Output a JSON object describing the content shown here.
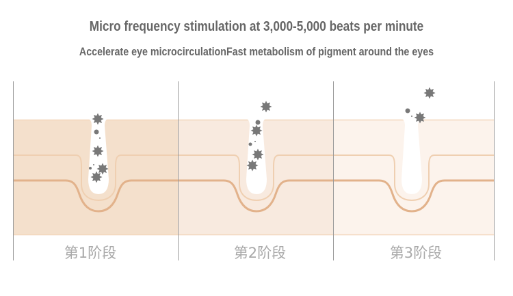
{
  "header": {
    "title": "Micro frequency stimulation at 3,000-5,000 beats per minute",
    "subtitle": "Accelerate eye microcirculationFast metabolism of pigment around the eyes"
  },
  "stages": [
    {
      "label": "第1阶段",
      "band_color": "#f4e0cc"
    },
    {
      "label": "第2阶段",
      "band_color": "#f8eadf"
    },
    {
      "label": "第3阶段",
      "band_color": "#fcf3ec"
    }
  ],
  "colors": {
    "divider": "#9a9a9a",
    "band_edge": "#f2d6bb",
    "inner_layer_line": "#efcfb1",
    "deep_layer_line": "#e2b28b",
    "pore": "#ffffff",
    "pigment": "#787878"
  },
  "icons": {
    "pigment_particle": "pigment-star-icon",
    "pigment_dot": "pigment-dot-icon"
  }
}
